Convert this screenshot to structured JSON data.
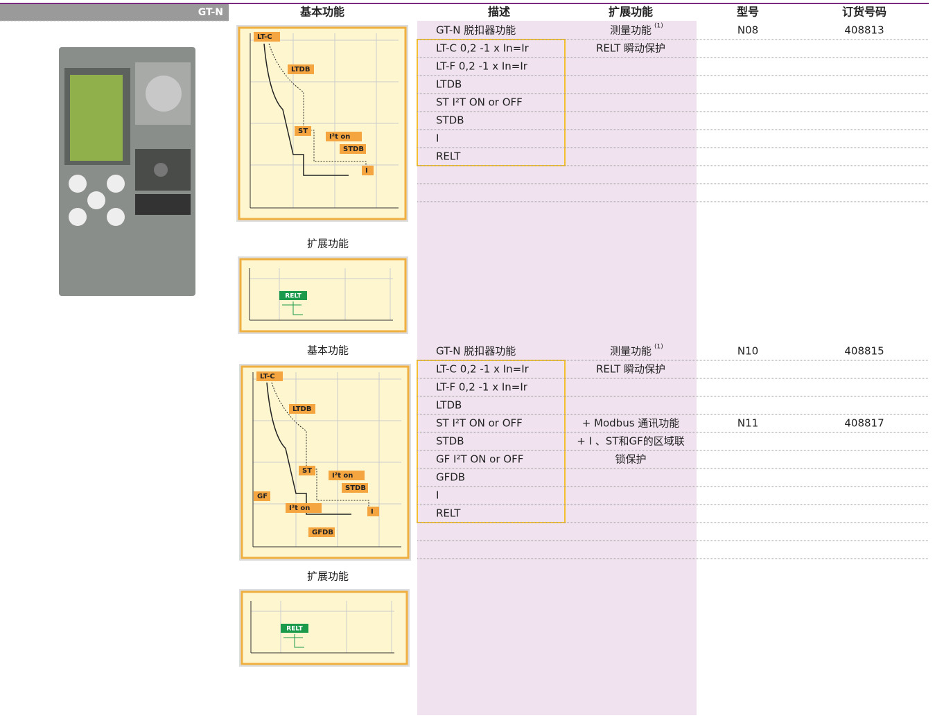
{
  "header": {
    "product": "GT-N",
    "columns": [
      "基本功能",
      "描述",
      "扩展功能",
      "型号",
      "订货号码"
    ]
  },
  "sections": [
    {
      "diagram_labels": [
        "LT-C",
        "LTDB",
        "ST",
        "I²t on",
        "STDB",
        "I"
      ],
      "extended_label": "扩展功能",
      "extended_diagram_label": "RELT",
      "rows": [
        {
          "description": "GT-N 脱扣器功能",
          "extended": "测量功能",
          "note": "(1)",
          "model": "N08",
          "order": "408813"
        },
        {
          "description": "LT-C 0,2 -1 x In=Ir",
          "extended": "RELT 瞬动保护"
        },
        {
          "description": "LT-F 0,2 -1 x In=Ir"
        },
        {
          "description": "LTDB"
        },
        {
          "description": "ST I²T ON or OFF"
        },
        {
          "description": "STDB"
        },
        {
          "description": "I"
        },
        {
          "description": "RELT"
        }
      ]
    },
    {
      "basic_label": "基本功能",
      "diagram_labels": [
        "LT-C",
        "LTDB",
        "ST",
        "I²t on",
        "STDB",
        "GF",
        "I²t on",
        "I",
        "GFDB"
      ],
      "extended_label": "扩展功能",
      "extended_diagram_label": "RELT",
      "rows": [
        {
          "description": "GT-N 脱扣器功能",
          "extended": "测量功能",
          "note": "(1)",
          "model": "N10",
          "order": "408815"
        },
        {
          "description": "LT-C 0,2 -1 x In=Ir",
          "extended": "RELT 瞬动保护"
        },
        {
          "description": "LT-F 0,2 -1 x In=Ir"
        },
        {
          "description": "LTDB"
        },
        {
          "description": "ST I²T ON or OFF",
          "extended": "+ Modbus 通讯功能",
          "model": "N11",
          "order": "408817"
        },
        {
          "description": "STDB",
          "extended": "+ I 、ST和GF的区域联"
        },
        {
          "description": "GF I²T ON or OFF",
          "extended": "锁保护"
        },
        {
          "description": "GFDB"
        },
        {
          "description": "I"
        },
        {
          "description": "RELT"
        }
      ]
    }
  ]
}
